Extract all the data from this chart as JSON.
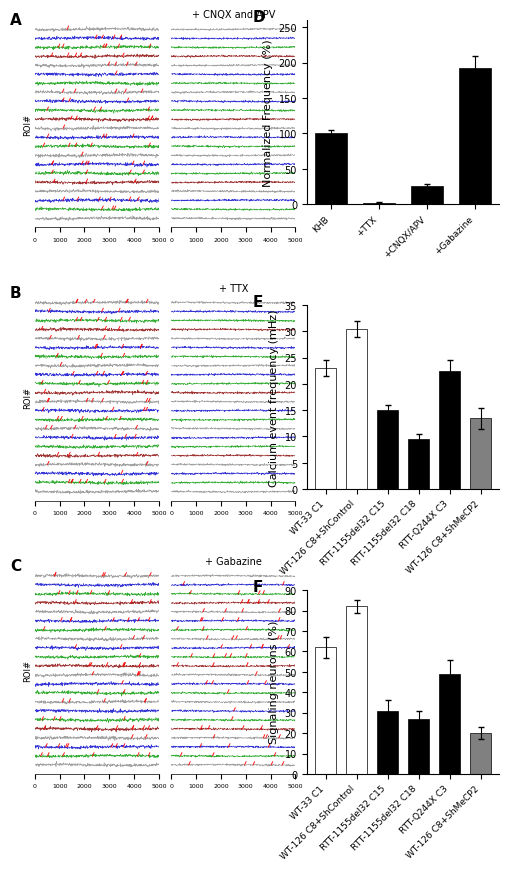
{
  "panel_D": {
    "categories": [
      "KHB",
      "+TTX",
      "+CNQX/APV",
      "+Gabazine"
    ],
    "values": [
      100,
      2,
      25,
      192
    ],
    "errors": [
      5,
      1,
      3,
      18
    ],
    "ylabel": "Normalized Frequency (%)",
    "ylim": [
      0,
      260
    ],
    "yticks": [
      0,
      50,
      100,
      150,
      200,
      250
    ],
    "bar_color": "#000000",
    "label": "D"
  },
  "panel_E": {
    "categories": [
      "WT-33 C1",
      "WT-126 C8+ShControl",
      "RTT-1155del32 C15",
      "RTT-1155del32 C18",
      "RTT-Q244X C3",
      "WT-126 C8+ShMeCP2"
    ],
    "values": [
      23,
      30.5,
      15,
      9.5,
      22.5,
      13.5
    ],
    "errors": [
      1.5,
      1.5,
      1.0,
      1.0,
      2.0,
      2.0
    ],
    "ylabel": "Calcium event frequency (mHz)",
    "ylim": [
      0,
      35
    ],
    "yticks": [
      0,
      5,
      10,
      15,
      20,
      25,
      30,
      35
    ],
    "bar_colors": [
      "#ffffff",
      "#ffffff",
      "#000000",
      "#000000",
      "#000000",
      "#808080"
    ],
    "label": "E"
  },
  "panel_F": {
    "categories": [
      "WT-33 C1",
      "WT-126 C8+ShControl",
      "RTT-1155del32 C15",
      "RTT-1155del32 C18",
      "RTT-Q244X C3",
      "WT-126 C8+ShMeCP2"
    ],
    "values": [
      62,
      82,
      31,
      27,
      49,
      20
    ],
    "errors": [
      5,
      3,
      5,
      4,
      7,
      3
    ],
    "ylabel": "Signaling neurons (%)",
    "ylim": [
      0,
      90
    ],
    "yticks": [
      0,
      10,
      20,
      30,
      40,
      50,
      60,
      70,
      80,
      90
    ],
    "bar_colors": [
      "#ffffff",
      "#ffffff",
      "#000000",
      "#000000",
      "#000000",
      "#808080"
    ],
    "label": "F"
  },
  "trace_colors": [
    "#888888",
    "#0000cc",
    "#009900",
    "#880000",
    "#888888",
    "#0000cc",
    "#009900"
  ],
  "bg_color": "#ffffff",
  "label_fontsize": 11,
  "tick_fontsize": 7,
  "axis_label_fontsize": 8,
  "cat_label_fontsize": 6.5,
  "n_traces": 22
}
